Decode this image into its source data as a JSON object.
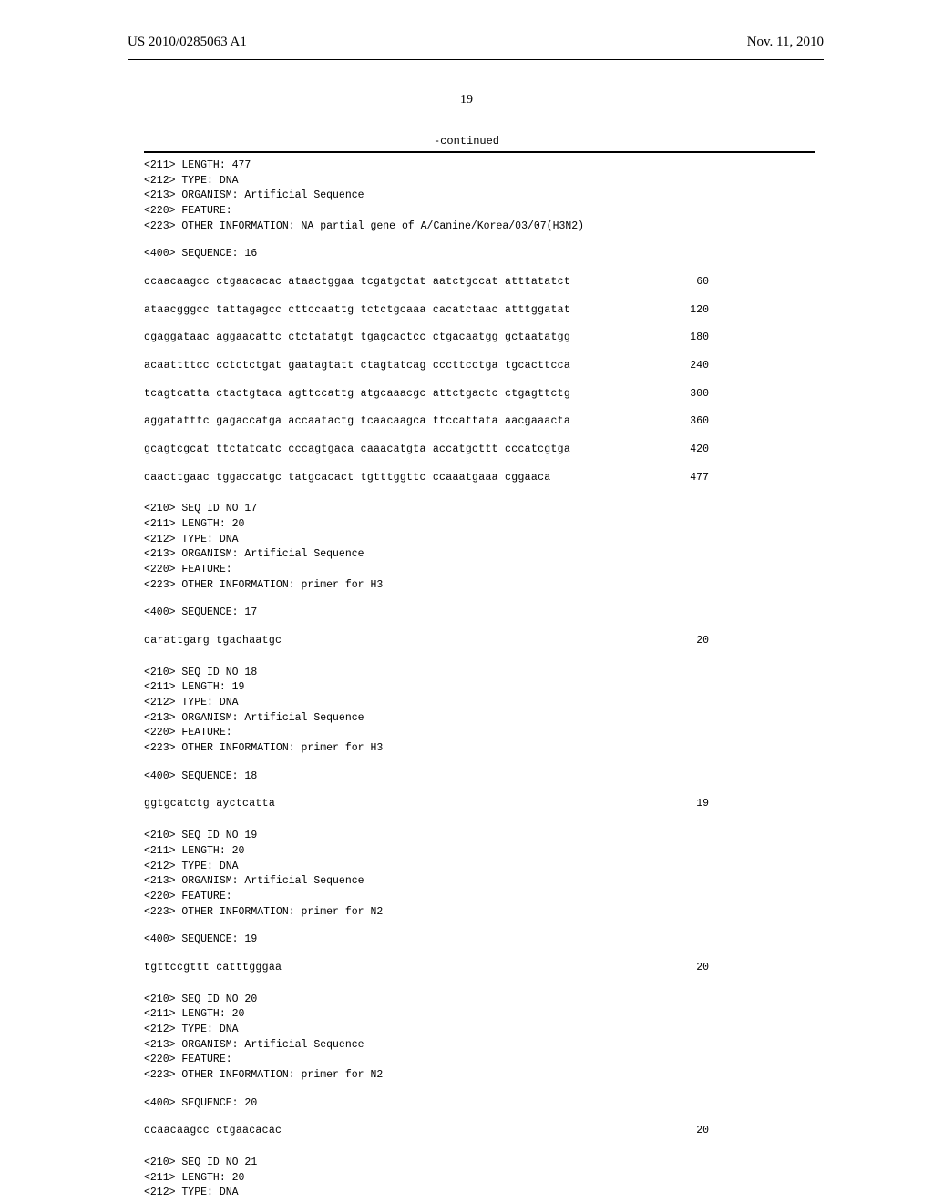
{
  "header": {
    "publication": "US 2010/0285063 A1",
    "date": "Nov. 11, 2010"
  },
  "page_number": "19",
  "continued_label": "-continued",
  "blocks": [
    {
      "headers": [
        "<211> LENGTH: 477",
        "<212> TYPE: DNA",
        "<213> ORGANISM: Artificial Sequence",
        "<220> FEATURE:",
        "<223> OTHER INFORMATION: NA partial gene of A/Canine/Korea/03/07(H3N2)"
      ],
      "seq_label": "<400> SEQUENCE: 16",
      "lines": [
        {
          "text": "ccaacaagcc ctgaacacac ataactggaa tcgatgctat aatctgccat atttatatct",
          "num": "60"
        },
        {
          "text": "ataacgggcc tattagagcc cttccaattg tctctgcaaa cacatctaac atttggatat",
          "num": "120"
        },
        {
          "text": "cgaggataac aggaacattc ctctatatgt tgagcactcc ctgacaatgg gctaatatgg",
          "num": "180"
        },
        {
          "text": "acaattttcc cctctctgat gaatagtatt ctagtatcag cccttcctga tgcacttcca",
          "num": "240"
        },
        {
          "text": "tcagtcatta ctactgtaca agttccattg atgcaaacgc attctgactc ctgagttctg",
          "num": "300"
        },
        {
          "text": "aggatatttc gagaccatga accaatactg tcaacaagca ttccattata aacgaaacta",
          "num": "360"
        },
        {
          "text": "gcagtcgcat ttctatcatc cccagtgaca caaacatgta accatgcttt cccatcgtga",
          "num": "420"
        },
        {
          "text": "caacttgaac tggaccatgc tatgcacact tgtttggttc ccaaatgaaa cggaaca",
          "num": "477"
        }
      ]
    },
    {
      "headers": [
        "<210> SEQ ID NO 17",
        "<211> LENGTH: 20",
        "<212> TYPE: DNA",
        "<213> ORGANISM: Artificial Sequence",
        "<220> FEATURE:",
        "<223> OTHER INFORMATION: primer for H3"
      ],
      "seq_label": "<400> SEQUENCE: 17",
      "lines": [
        {
          "text": "carattgarg tgachaatgc",
          "num": "20"
        }
      ]
    },
    {
      "headers": [
        "<210> SEQ ID NO 18",
        "<211> LENGTH: 19",
        "<212> TYPE: DNA",
        "<213> ORGANISM: Artificial Sequence",
        "<220> FEATURE:",
        "<223> OTHER INFORMATION: primer for H3"
      ],
      "seq_label": "<400> SEQUENCE: 18",
      "lines": [
        {
          "text": "ggtgcatctg ayctcatta",
          "num": "19"
        }
      ]
    },
    {
      "headers": [
        "<210> SEQ ID NO 19",
        "<211> LENGTH: 20",
        "<212> TYPE: DNA",
        "<213> ORGANISM: Artificial Sequence",
        "<220> FEATURE:",
        "<223> OTHER INFORMATION: primer for N2"
      ],
      "seq_label": "<400> SEQUENCE: 19",
      "lines": [
        {
          "text": "tgttccgttt catttgggaa",
          "num": "20"
        }
      ]
    },
    {
      "headers": [
        "<210> SEQ ID NO 20",
        "<211> LENGTH: 20",
        "<212> TYPE: DNA",
        "<213> ORGANISM: Artificial Sequence",
        "<220> FEATURE:",
        "<223> OTHER INFORMATION: primer for N2"
      ],
      "seq_label": "<400> SEQUENCE: 20",
      "lines": [
        {
          "text": "ccaacaagcc ctgaacacac",
          "num": "20"
        }
      ]
    },
    {
      "headers": [
        "<210> SEQ ID NO 21",
        "<211> LENGTH: 20",
        "<212> TYPE: DNA"
      ],
      "seq_label": "",
      "lines": []
    }
  ]
}
